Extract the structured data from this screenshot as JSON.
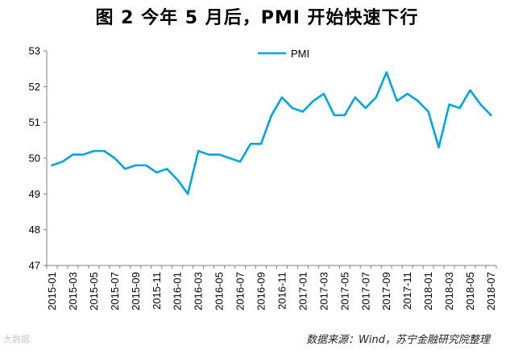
{
  "title": "图 2   今年 5 月后，PMI 开始快速下行",
  "source": "数据来源：Wind，苏宁金融研究院整理",
  "watermark": "大数据",
  "colors": {
    "line": "#00A6E0",
    "axis": "#7f7f7f"
  },
  "chart_data": {
    "type": "line",
    "legend_position": "top-center",
    "grid": false,
    "ylim": [
      47,
      53
    ],
    "yticks": [
      47,
      48,
      49,
      50,
      51,
      52,
      53
    ],
    "x": [
      "2015-01",
      "2015-02",
      "2015-03",
      "2015-04",
      "2015-05",
      "2015-06",
      "2015-07",
      "2015-08",
      "2015-09",
      "2015-10",
      "2015-11",
      "2015-12",
      "2016-01",
      "2016-02",
      "2016-03",
      "2016-04",
      "2016-05",
      "2016-06",
      "2016-07",
      "2016-08",
      "2016-09",
      "2016-10",
      "2016-11",
      "2016-12",
      "2017-01",
      "2017-02",
      "2017-03",
      "2017-04",
      "2017-05",
      "2017-06",
      "2017-07",
      "2017-08",
      "2017-09",
      "2017-10",
      "2017-11",
      "2017-12",
      "2018-01",
      "2018-02",
      "2018-03",
      "2018-04",
      "2018-05",
      "2018-06",
      "2018-07"
    ],
    "xtick_labels": [
      "2015-01",
      "2015-03",
      "2015-05",
      "2015-07",
      "2015-09",
      "2015-11",
      "2016-01",
      "2016-03",
      "2016-05",
      "2016-07",
      "2016-09",
      "2016-11",
      "2017-01",
      "2017-03",
      "2017-05",
      "2017-07",
      "2017-09",
      "2017-11",
      "2018-01",
      "2018-03",
      "2018-05",
      "2018-07"
    ],
    "series": [
      {
        "name": "PMI",
        "values": [
          49.8,
          49.9,
          50.1,
          50.1,
          50.2,
          50.2,
          50.0,
          49.7,
          49.8,
          49.8,
          49.6,
          49.7,
          49.4,
          49.0,
          50.2,
          50.1,
          50.1,
          50.0,
          49.9,
          50.4,
          50.4,
          51.2,
          51.7,
          51.4,
          51.3,
          51.6,
          51.8,
          51.2,
          51.2,
          51.7,
          51.4,
          51.7,
          52.4,
          51.6,
          51.8,
          51.6,
          51.3,
          50.3,
          51.5,
          51.4,
          51.9,
          51.5,
          51.2
        ]
      }
    ]
  }
}
